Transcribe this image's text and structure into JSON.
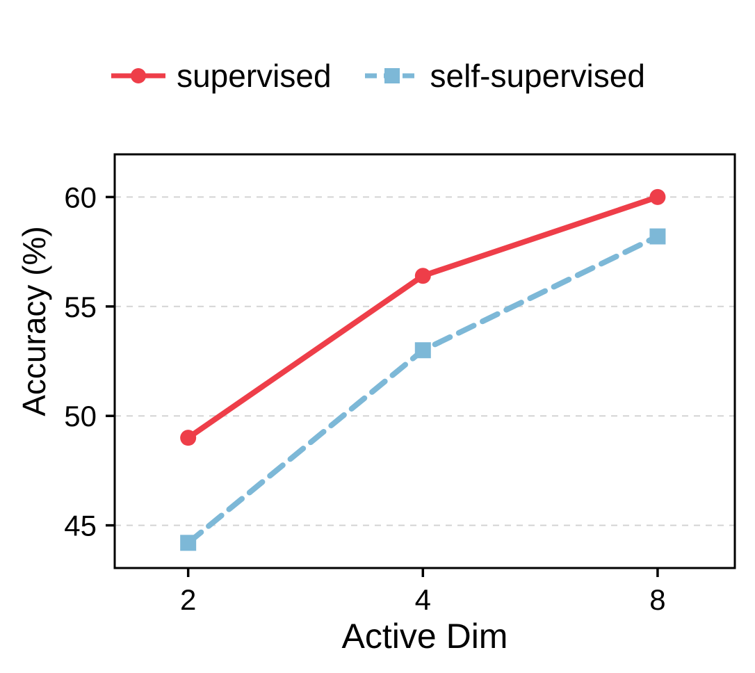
{
  "figure": {
    "background": "#ffffff"
  },
  "chart_data": {
    "type": "line",
    "title": "",
    "xlabel": "Active Dim",
    "ylabel": "Accuracy (%)",
    "x": [
      2,
      4,
      8
    ],
    "x_scale": "log2",
    "xticks": [
      2,
      4,
      8
    ],
    "yticks": [
      45,
      50,
      55,
      60
    ],
    "xlim_log2": [
      0.687,
      3.329
    ],
    "ylim": [
      43.05,
      61.95
    ],
    "grid": "horizontal dashed",
    "grid_color": "#d4d4d4",
    "spine_color": "#000000",
    "legend_position": "upper center",
    "series": [
      {
        "name": "supervised",
        "values": [
          49.0,
          56.4,
          60.0
        ],
        "color": "#ee3e49",
        "line_style": "solid",
        "marker": "circle"
      },
      {
        "name": "self-supervised",
        "values": [
          44.2,
          53.0,
          58.2
        ],
        "color": "#7db8d7",
        "line_style": "dashed",
        "marker": "square"
      }
    ]
  }
}
